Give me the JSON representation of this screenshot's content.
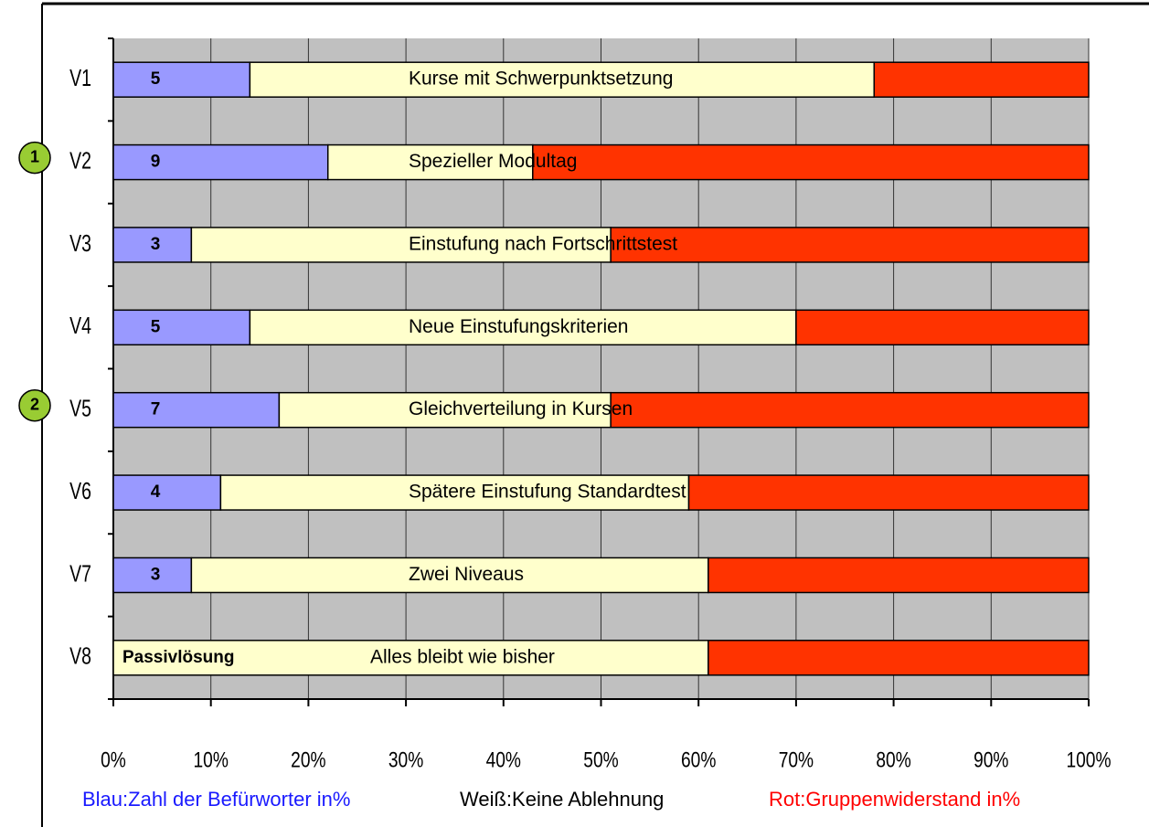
{
  "chart_data": {
    "type": "stacked_bar_horizontal",
    "categories": [
      "V1",
      "V2",
      "V3",
      "V4",
      "V5",
      "V6",
      "V7",
      "V8"
    ],
    "series": [
      {
        "name": "Blau:Zahl der Befürworter in%",
        "color": "#9999ff",
        "values": [
          14,
          22,
          8,
          14,
          17,
          11,
          8,
          0
        ]
      },
      {
        "name": "Weiß:Keine Ablehnung",
        "color": "#ffffcc",
        "values": [
          64,
          21,
          43,
          56,
          34,
          48,
          53,
          61
        ]
      },
      {
        "name": "Rot:Gruppenwiderstand in%",
        "color": "#ff3300",
        "values": [
          22,
          57,
          49,
          30,
          49,
          41,
          39,
          39
        ]
      }
    ],
    "legend_colors": [
      "#1a1aff",
      "#000000",
      "#ff0000"
    ],
    "counts": [
      5,
      9,
      3,
      5,
      7,
      4,
      3,
      "Passivlösung"
    ],
    "bar_labels": [
      "Kurse mit Schwerpunktsetzung",
      "Spezieller Modultag",
      "Einstufung nach Fortschrittstest",
      "Neue Einstufungskriterien",
      "Gleichverteilung in Kursen",
      "Spätere Einstufung Standardtest",
      "Zwei Niveaus",
      "Alles bleibt wie bisher"
    ],
    "markers": [
      {
        "row": 1,
        "label": "1"
      },
      {
        "row": 4,
        "label": "2"
      }
    ],
    "xlim": [
      0,
      100
    ],
    "xticks": [
      {
        "value": 0,
        "label": "0%"
      },
      {
        "value": 10,
        "label": "10%"
      },
      {
        "value": 20,
        "label": "20%"
      },
      {
        "value": 30,
        "label": "30%"
      },
      {
        "value": 40,
        "label": "40%"
      },
      {
        "value": 50,
        "label": "50%"
      },
      {
        "value": 60,
        "label": "60%"
      },
      {
        "value": 70,
        "label": "70%"
      },
      {
        "value": 80,
        "label": "80%"
      },
      {
        "value": 90,
        "label": "90%"
      },
      {
        "value": 100,
        "label": "100%"
      }
    ],
    "grid": true
  }
}
